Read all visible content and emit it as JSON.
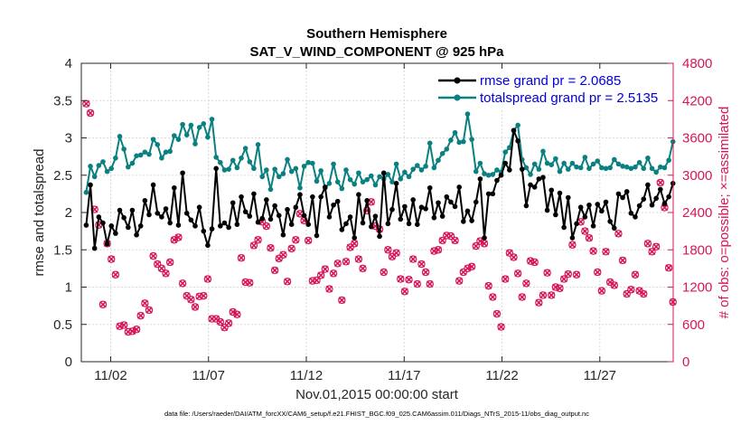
{
  "chart_data": {
    "type": "line",
    "title": "Southern Hemisphere",
    "subtitle": "SAT_V_WIND_COMPONENT @ 925 hPa",
    "xlabel": "Nov.01,2015 00:00:00 start",
    "ylabel_left": "rmse and totalspread",
    "ylabel_right": "# of obs: o=possible; ×=assimilated",
    "footer": "data file: /Users/raeder/DAI/ATM_forcXX/CAM6_setup/f.e21.FHIST_BGC.f09_025.CAM6assim.011/Diags_NTrS_2015-11/obs_diag_output.nc",
    "xlim": [
      0.5,
      30.75
    ],
    "ylim_left": [
      0,
      4
    ],
    "ylim_right": [
      0,
      4800
    ],
    "x_ticks": [
      {
        "value": 2,
        "label": "11/02"
      },
      {
        "value": 7,
        "label": "11/07"
      },
      {
        "value": 12,
        "label": "11/12"
      },
      {
        "value": 17,
        "label": "11/17"
      },
      {
        "value": 22,
        "label": "11/22"
      },
      {
        "value": 27,
        "label": "11/27"
      }
    ],
    "y_ticks_left": [
      "0",
      "0.5",
      "1",
      "1.5",
      "2",
      "2.5",
      "3",
      "3.5",
      "4"
    ],
    "y_ticks_right": [
      "0",
      "600",
      "1200",
      "1800",
      "2400",
      "3000",
      "3600",
      "4200",
      "4800"
    ],
    "colors": {
      "rmse": "#000000",
      "spread": "#0a8080",
      "obs": "#d6155a",
      "legend_text": "#0000dd",
      "axis": "#262626",
      "grid": "#d9d9d9"
    },
    "series": [
      {
        "name": "rmse",
        "label": "rmse grand pr = 2.0685",
        "axis": "left",
        "values": [
          1.83,
          2.37,
          1.52,
          1.94,
          1.86,
          1.58,
          1.82,
          1.72,
          2.03,
          1.93,
          1.8,
          2.03,
          1.7,
          1.82,
          2.16,
          1.97,
          2.37,
          1.99,
          1.94,
          2.05,
          1.86,
          2.33,
          1.83,
          2.53,
          1.99,
          1.9,
          1.82,
          2.07,
          1.75,
          1.56,
          1.78,
          2.59,
          1.82,
          1.86,
          1.8,
          2.13,
          1.84,
          2.21,
          2.01,
          1.95,
          2.25,
          1.87,
          1.92,
          2.17,
          1.91,
          2.09,
          1.96,
          1.7,
          2.04,
          1.84,
          2.07,
          2.24,
          1.96,
          1.84,
          2.21,
          1.69,
          2.21,
          2.34,
          1.94,
          2.1,
          2.15,
          1.77,
          1.85,
          1.94,
          1.66,
          2.24,
          1.86,
          2.16,
          1.81,
          1.95,
          1.68,
          2.53,
          1.85,
          2.04,
          2.39,
          1.91,
          2.08,
          1.85,
          2.17,
          1.84,
          2.07,
          2.05,
          2.33,
          1.93,
          2.13,
          1.95,
          2.21,
          2.14,
          2.08,
          2.34,
          1.88,
          2.02,
          1.89,
          2.14,
          2.45,
          1.66,
          2.25,
          2.25,
          2.43,
          2.5,
          2.66,
          2.57,
          3.1,
          2.96,
          2.58,
          2.09,
          2.37,
          2.34,
          2.45,
          2.47,
          2.03,
          2.3,
          1.97,
          2.26,
          1.8,
          2.2,
          1.66,
          1.85,
          2.07,
          1.94,
          2.1,
          1.82,
          2.11,
          2.02,
          2.14,
          1.88,
          1.79,
          2.25,
          2.2,
          2.28,
          1.99,
          1.94,
          2.09,
          2.18,
          2.37,
          2.1,
          2.19,
          2.31,
          2.12,
          2.21,
          2.39
        ]
      },
      {
        "name": "totalspread",
        "label": "totalspread grand pr = 2.5135",
        "axis": "left",
        "values": [
          2.27,
          2.62,
          2.48,
          2.63,
          2.68,
          2.55,
          2.59,
          2.73,
          3.02,
          2.85,
          2.61,
          2.66,
          2.76,
          2.77,
          2.81,
          2.78,
          2.98,
          2.91,
          2.73,
          2.81,
          2.82,
          3.03,
          2.98,
          3.18,
          3.04,
          3.17,
          2.92,
          3.14,
          3.19,
          3.01,
          3.25,
          2.74,
          2.67,
          2.57,
          2.58,
          2.7,
          2.6,
          2.73,
          2.86,
          2.68,
          2.59,
          2.91,
          2.48,
          2.57,
          2.31,
          2.58,
          2.48,
          2.52,
          2.71,
          2.55,
          2.59,
          2.33,
          2.62,
          2.67,
          2.66,
          2.42,
          2.56,
          2.33,
          2.39,
          2.65,
          2.41,
          2.32,
          2.57,
          2.44,
          2.38,
          2.53,
          2.41,
          2.44,
          2.49,
          2.37,
          2.48,
          2.45,
          2.51,
          2.41,
          2.65,
          2.45,
          2.54,
          2.48,
          2.58,
          2.63,
          2.57,
          2.62,
          2.93,
          2.6,
          2.7,
          2.79,
          2.85,
          2.97,
          3.07,
          2.94,
          2.95,
          3.32,
          2.98,
          2.55,
          2.66,
          2.52,
          2.5,
          2.51,
          2.57,
          2.54,
          2.81,
          2.87,
          3.1,
          3.17,
          2.71,
          2.6,
          2.51,
          2.65,
          2.58,
          2.82,
          2.66,
          2.64,
          2.72,
          2.55,
          2.66,
          2.58,
          2.66,
          2.61,
          2.6,
          2.74,
          2.59,
          2.65,
          2.69,
          2.6,
          2.59,
          2.6,
          2.71,
          2.65,
          2.62,
          2.61,
          2.59,
          2.61,
          2.67,
          2.59,
          2.73,
          2.59,
          2.54,
          2.61,
          2.6,
          2.7,
          2.95
        ]
      },
      {
        "name": "obs_possible",
        "label": "o=possible",
        "axis": "right",
        "values": [
          4150,
          4000,
          2450,
          2200,
          920,
          1900,
          1650,
          1400,
          570,
          590,
          480,
          490,
          520,
          740,
          940,
          830,
          1700,
          1570,
          1500,
          1420,
          1600,
          1960,
          2000,
          1260,
          1060,
          1000,
          880,
          1050,
          1060,
          1330,
          690,
          690,
          640,
          550,
          620,
          800,
          760,
          1670,
          1280,
          1270,
          1870,
          1960,
          2250,
          2180,
          1830,
          1470,
          1660,
          1720,
          1290,
          1820,
          1960,
          2380,
          2270,
          1950,
          1300,
          1310,
          1390,
          1490,
          1170,
          1420,
          1580,
          990,
          1610,
          1840,
          1900,
          1650,
          1500,
          2430,
          2570,
          2180,
          2130,
          1440,
          1800,
          1690,
          1750,
          1330,
          1130,
          1320,
          1650,
          1250,
          1570,
          1440,
          1250,
          1780,
          1800,
          1950,
          2030,
          2020,
          1950,
          1300,
          1440,
          1500,
          1530,
          1860,
          1940,
          1900,
          1220,
          1040,
          770,
          560,
          1330,
          1750,
          1680,
          1420,
          1040,
          1260,
          1620,
          1600,
          950,
          1070,
          1430,
          1070,
          1200,
          1180,
          1330,
          1410,
          1880,
          1400,
          2250,
          2100,
          1990,
          1780,
          1440,
          1140,
          1770,
          1280,
          1230,
          2060,
          1630,
          1090,
          1160,
          1400,
          1140,
          1090,
          1900,
          1770,
          1850,
          2880,
          2480,
          1510,
          960
        ]
      },
      {
        "name": "obs_assimilated",
        "label": "×=assimilated",
        "axis": "right",
        "values": [
          4150,
          4000,
          2450,
          2200,
          920,
          1900,
          1650,
          1400,
          570,
          590,
          480,
          490,
          520,
          740,
          940,
          830,
          1700,
          1570,
          1500,
          1420,
          1600,
          1960,
          2000,
          1260,
          1060,
          1000,
          880,
          1050,
          1060,
          1330,
          690,
          690,
          640,
          550,
          620,
          800,
          760,
          1670,
          1280,
          1270,
          1870,
          1960,
          2250,
          2180,
          1830,
          1470,
          1660,
          1720,
          1290,
          1820,
          1960,
          2380,
          2270,
          1950,
          1300,
          1310,
          1390,
          1490,
          1170,
          1420,
          1580,
          990,
          1610,
          1840,
          1900,
          1650,
          1500,
          2430,
          2570,
          2180,
          2130,
          1440,
          1800,
          1690,
          1750,
          1330,
          1130,
          1320,
          1650,
          1250,
          1570,
          1440,
          1250,
          1780,
          1800,
          1950,
          2030,
          2020,
          1950,
          1300,
          1440,
          1500,
          1530,
          1860,
          1940,
          1900,
          1220,
          1040,
          770,
          560,
          1330,
          1750,
          1680,
          1420,
          1040,
          1260,
          1620,
          1600,
          950,
          1070,
          1430,
          1070,
          1200,
          1180,
          1330,
          1410,
          1880,
          1400,
          2250,
          2100,
          1990,
          1780,
          1440,
          1140,
          1770,
          1280,
          1230,
          2060,
          1630,
          1090,
          1160,
          1400,
          1140,
          1090,
          1900,
          1770,
          1850,
          2880,
          2480,
          1510,
          960
        ]
      }
    ]
  }
}
